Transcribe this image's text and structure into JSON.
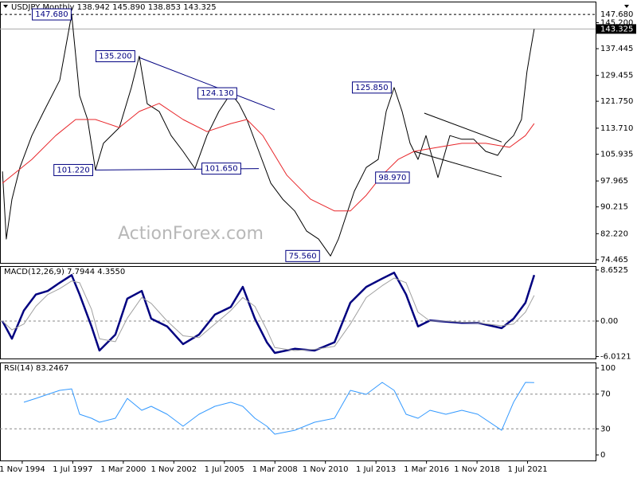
{
  "chart_data": [
    {
      "type": "line",
      "title": "USDJPY,Monthly  138.942 145.890 138.853 143.325",
      "watermark": "ActionForex.com",
      "xlim": [
        1993.66,
        2025.09
      ],
      "ylim": [
        73.5,
        151.5
      ],
      "yticks": [
        74.465,
        {
          "value": 82.22,
          "label": "82.220"
        },
        90.215,
        97.965,
        105.935,
        {
          "value": 113.71,
          "label": "113.710"
        },
        {
          "value": 121.75,
          "label": "121.750"
        },
        129.455,
        137.445,
        {
          "value": 145.2,
          "label": "145.200"
        }
      ],
      "grid": false,
      "reference_lines": [
        {
          "value": 147.68,
          "label": "147.680",
          "style": "dashed"
        },
        {
          "value": 143.325,
          "label": "143.325",
          "style": "current"
        }
      ],
      "series": [
        {
          "color": "#000000",
          "width": 1,
          "x": [
            1993.79,
            1993.99,
            1994.29,
            1994.71,
            1995.34,
            1995.97,
            1996.81,
            1997.44,
            1997.86,
            1998.28,
            1998.7,
            1999.12,
            1999.96,
            2000.59,
            2001.01,
            2001.43,
            2002.06,
            2002.69,
            2003.32,
            2003.95,
            2004.58,
            2005.21,
            2005.84,
            2006.27,
            2006.69,
            2007.32,
            2007.95,
            2008.58,
            2009.21,
            2009.84,
            2010.47,
            2011.1,
            2011.52,
            2011.94,
            2012.36,
            2012.99,
            2013.62,
            2014.04,
            2014.46,
            2014.88,
            2015.3,
            2015.72,
            2016.14,
            2016.77,
            2017.4,
            2018.03,
            2018.66,
            2019.29,
            2019.92,
            2020.34,
            2020.76,
            2021.18,
            2021.47,
            2021.68,
            2021.85
          ],
          "values": [
            100.8,
            80.6,
            92.5,
            102,
            111.5,
            118.7,
            128,
            147.68,
            123.4,
            116.3,
            101.22,
            109.2,
            113.9,
            125.8,
            135.2,
            121,
            118.7,
            111.5,
            106.8,
            101.65,
            111.5,
            118.7,
            124.13,
            121,
            116.3,
            106.8,
            97.3,
            92.5,
            89,
            83,
            80.6,
            75.56,
            80.6,
            87.8,
            94.9,
            102,
            104.4,
            118.7,
            125.85,
            118.7,
            109.2,
            104.4,
            111.5,
            98.97,
            111.5,
            110.4,
            110.4,
            106.8,
            105.6,
            109.2,
            111.5,
            116.3,
            130.6,
            137.7,
            143.325
          ]
        },
        {
          "color": "#e8262a",
          "width": 1,
          "x": [
            1993.79,
            1995.34,
            1996.6,
            1997.65,
            1998.7,
            1999.96,
            2001.01,
            2002.06,
            2003.32,
            2004.58,
            2005.84,
            2006.69,
            2007.53,
            2008.79,
            2010.05,
            2011.31,
            2012.15,
            2012.99,
            2013.83,
            2014.67,
            2015.51,
            2016.77,
            2018.03,
            2019.29,
            2020.55,
            2021.39,
            2021.85
          ],
          "values": [
            97.3,
            104.4,
            111.5,
            116.3,
            116.3,
            113.9,
            118.7,
            121.1,
            116.3,
            112.7,
            115.1,
            116.3,
            111.5,
            99.7,
            92.5,
            89,
            89,
            93.7,
            99.7,
            104.4,
            106.8,
            108,
            109.2,
            109.2,
            108,
            111.5,
            115.1
          ]
        }
      ],
      "trendlines": [
        {
          "color": "#000080",
          "x": [
            2001.01,
            2008.15
          ],
          "values": [
            134.8,
            119.2
          ]
        },
        {
          "color": "#000080",
          "x": [
            1998.7,
            2007.32
          ],
          "values": [
            101.22,
            101.65
          ]
        },
        {
          "color": "#000000",
          "x": [
            2016.05,
            2020.13
          ],
          "values": [
            118.2,
            109.6
          ]
        },
        {
          "color": "#000000",
          "x": [
            2015.51,
            2020.13
          ],
          "values": [
            106.8,
            99.2
          ]
        }
      ],
      "annotations": [
        {
          "x": 1996.39,
          "value": 147.68,
          "label": "147.680"
        },
        {
          "x": 1999.75,
          "value": 135.2,
          "label": "135.200"
        },
        {
          "x": 2005.13,
          "value": 124.13,
          "label": "124.130"
        },
        {
          "x": 2013.28,
          "value": 125.85,
          "label": "125.850"
        },
        {
          "x": 1997.53,
          "value": 101.22,
          "label": "101.220"
        },
        {
          "x": 2005.34,
          "value": 101.65,
          "label": "101.650"
        },
        {
          "x": 2014.37,
          "value": 98.97,
          "label": "98.970"
        },
        {
          "x": 2009.63,
          "value": 75.56,
          "label": "75.560"
        }
      ]
    },
    {
      "type": "line",
      "title": "MACD(12,26,9) 7.7944 4.3550",
      "xlim": [
        1993.66,
        2025.09
      ],
      "ylim": [
        -6.35,
        9.32
      ],
      "yticks": [
        -6.0121,
        {
          "value": 0,
          "label": "0.00"
        },
        8.6525
      ],
      "dashed_levels": [
        0
      ],
      "grid": false,
      "series": [
        {
          "color": "#000080",
          "width": 2.5,
          "x": [
            1993.79,
            1994.29,
            1994.92,
            1995.55,
            1996.18,
            1996.81,
            1997.44,
            1997.86,
            1998.49,
            1998.91,
            1999.75,
            2000.38,
            2001.14,
            2001.64,
            2002.48,
            2003.32,
            2004.16,
            2005.0,
            2005.84,
            2006.47,
            2007.11,
            2007.74,
            2008.16,
            2009.21,
            2010.26,
            2011.31,
            2012.15,
            2012.99,
            2013.83,
            2014.46,
            2015.09,
            2015.72,
            2016.35,
            2017.19,
            2018.03,
            2018.87,
            2020.13,
            2020.76,
            2021.39,
            2021.85
          ],
          "values": [
            0,
            -3.0,
            1.8,
            4.5,
            5.1,
            6.5,
            7.8,
            4.5,
            -0.9,
            -5.0,
            -2.3,
            3.8,
            5.1,
            0.4,
            -0.9,
            -3.9,
            -2.3,
            1.1,
            2.4,
            5.8,
            0.4,
            -3.6,
            -5.4,
            -4.7,
            -5.0,
            -3.6,
            3.1,
            5.8,
            7.2,
            8.2,
            4.5,
            -0.9,
            0.1,
            -0.1,
            -0.3,
            -0.3,
            -1.2,
            0.4,
            3.1,
            7.7944
          ]
        },
        {
          "color": "#a0a0a0",
          "width": 1,
          "x": [
            1993.79,
            1994.29,
            1994.92,
            1995.55,
            1996.18,
            1996.81,
            1997.44,
            1997.86,
            1998.49,
            1998.91,
            1999.75,
            2000.38,
            2001.14,
            2001.64,
            2002.48,
            2003.32,
            2004.16,
            2005.0,
            2005.84,
            2006.47,
            2007.11,
            2007.74,
            2008.16,
            2009.21,
            2010.26,
            2011.31,
            2012.15,
            2012.99,
            2013.83,
            2014.46,
            2015.09,
            2015.72,
            2016.35,
            2017.19,
            2018.03,
            2018.87,
            2020.13,
            2020.76,
            2021.39,
            2021.85
          ],
          "values": [
            0,
            -1.5,
            -0.5,
            2.5,
            4.5,
            5.5,
            6.8,
            6.5,
            2,
            -3,
            -3.5,
            0.5,
            4.0,
            3.0,
            0,
            -2.5,
            -2.8,
            -0.5,
            1.8,
            4.0,
            2.5,
            -1.5,
            -4.5,
            -5.0,
            -4.8,
            -4.3,
            -0.5,
            4.0,
            6.0,
            7.3,
            6.5,
            1.5,
            0,
            0,
            -0.2,
            -0.3,
            -0.8,
            -0.5,
            1.5,
            4.355
          ]
        }
      ]
    },
    {
      "type": "line",
      "title": "RSI(14) 83.2467",
      "xlim": [
        1993.66,
        2025.09
      ],
      "ylim": [
        -6.4,
        106.4
      ],
      "yticks": [
        0,
        30,
        70,
        100
      ],
      "dashed_levels": [
        70,
        30
      ],
      "grid": false,
      "xticks": [
        {
          "value": 1994.833,
          "label": "1 Nov 1994"
        },
        {
          "value": 1997.5,
          "label": "1 Jul 1997"
        },
        {
          "value": 2000.167,
          "label": "1 Mar 2000"
        },
        {
          "value": 2002.833,
          "label": "1 Nov 2002"
        },
        {
          "value": 2005.5,
          "label": "1 Jul 2005"
        },
        {
          "value": 2008.167,
          "label": "1 Mar 2008"
        },
        {
          "value": 2010.833,
          "label": "1 Nov 2010"
        },
        {
          "value": 2013.5,
          "label": "1 Jul 2013"
        },
        {
          "value": 2016.167,
          "label": "1 Mar 2016"
        },
        {
          "value": 2018.833,
          "label": "1 Nov 2018"
        },
        {
          "value": 2021.5,
          "label": "1 Jul 2021"
        }
      ],
      "series": [
        {
          "color": "#3399ff",
          "width": 1,
          "x": [
            1993.79,
            1994.29,
            1994.92,
            1995.55,
            1996.18,
            1996.81,
            1997.44,
            1997.86,
            1998.49,
            1998.91,
            1999.75,
            2000.38,
            2001.14,
            2001.64,
            2002.48,
            2003.32,
            2004.16,
            2005.0,
            2005.84,
            2006.47,
            2007.11,
            2007.74,
            2008.16,
            2009.21,
            2010.26,
            2011.31,
            2012.15,
            2012.99,
            2013.83,
            2014.46,
            2015.09,
            2015.72,
            2016.35,
            2017.19,
            2018.03,
            2018.87,
            2020.13,
            2020.76,
            2021.39,
            2021.85
          ],
          "values": [
            null,
            null,
            60.6,
            65,
            69.7,
            74.3,
            76,
            46.8,
            42.2,
            37.6,
            42.2,
            65,
            51.4,
            56,
            46.8,
            33,
            46.8,
            56,
            60.6,
            56,
            42.2,
            33,
            23.9,
            28.4,
            37.6,
            42.2,
            74.3,
            69.7,
            83.5,
            74.3,
            46.8,
            42.2,
            51.4,
            46.8,
            51.4,
            46.8,
            28.4,
            60.6,
            83.5,
            83.2467
          ]
        }
      ]
    }
  ]
}
